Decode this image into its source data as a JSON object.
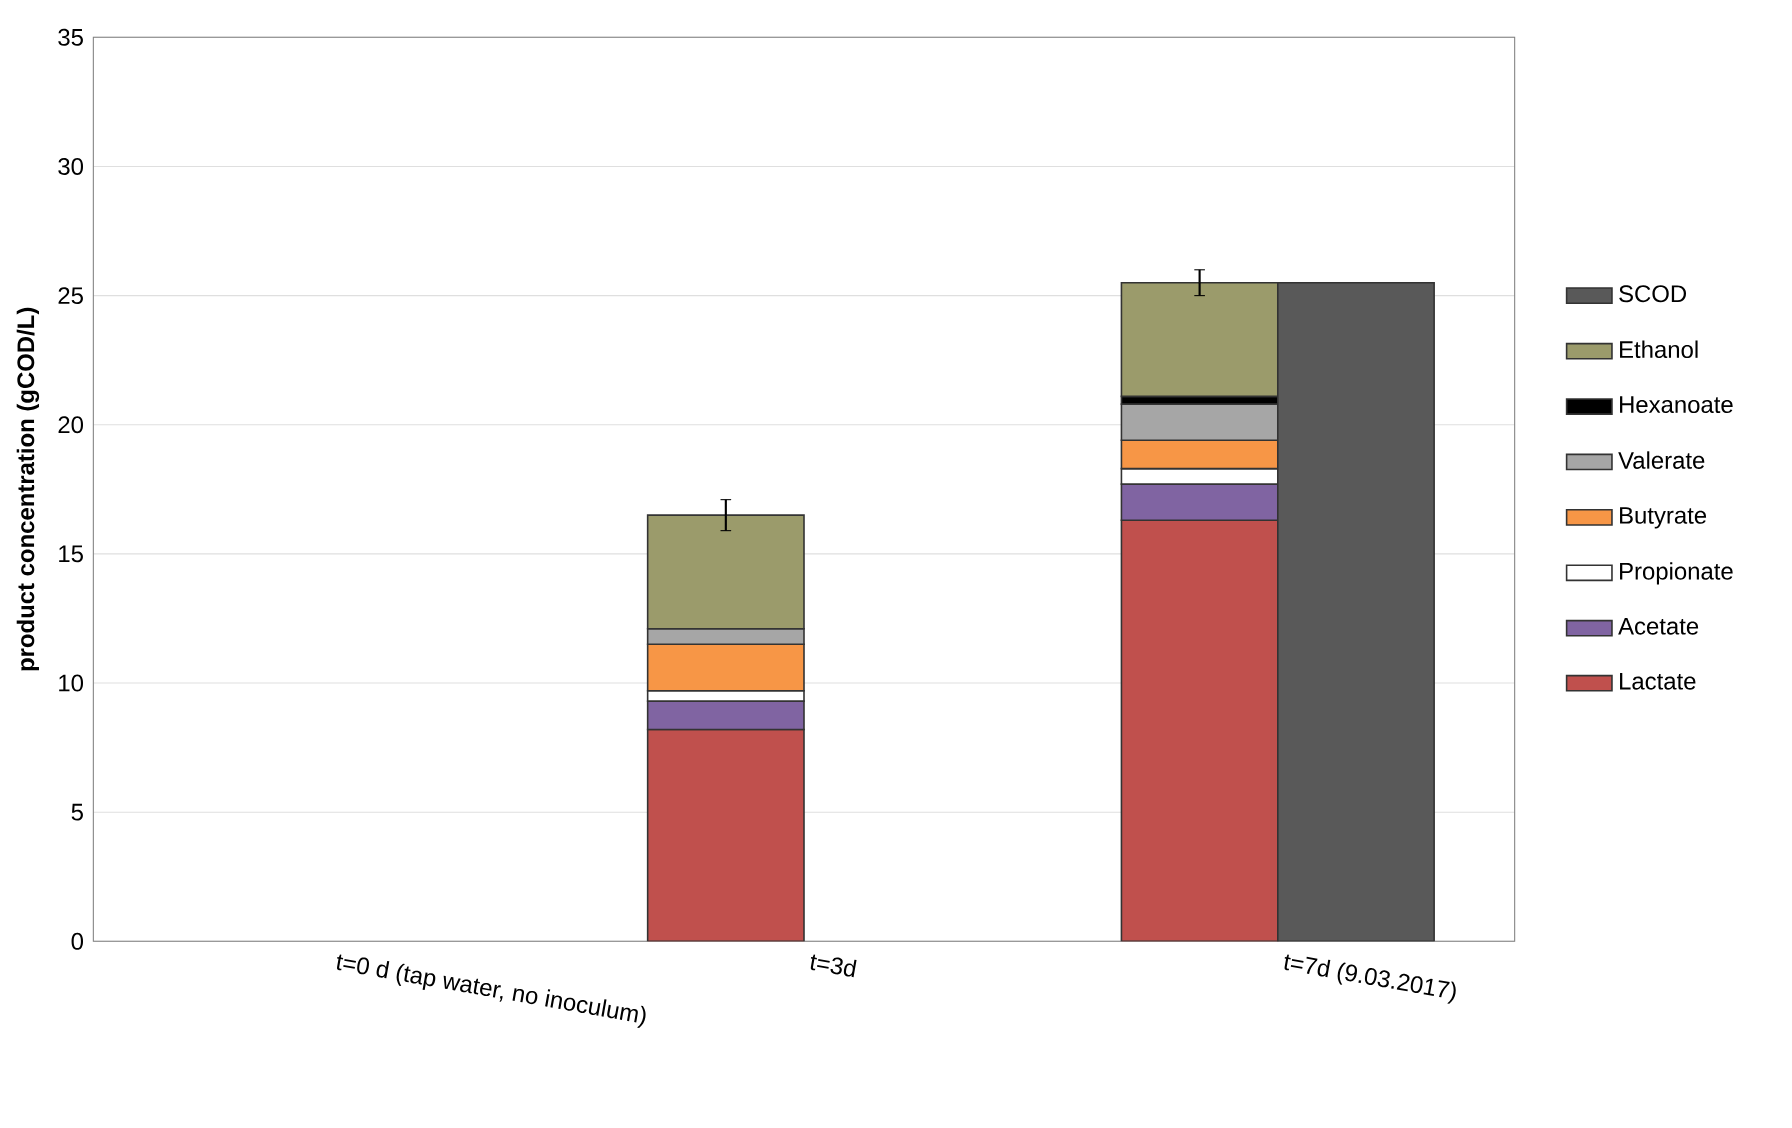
{
  "chart_data": {
    "type": "bar",
    "ylabel": "product concentration (gCOD/L)",
    "categories": [
      "t=0 d (tap water, no inoculum)",
      "t=3d",
      "t=7d (9.03.2017)"
    ],
    "ylim": [
      0,
      35
    ],
    "yticks": [
      0,
      5,
      10,
      15,
      20,
      25,
      30,
      35
    ],
    "grid": "y",
    "legend": "right",
    "series": [
      {
        "name": "Lactate",
        "color": "#c0504d",
        "values": [
          null,
          8.2,
          16.3
        ],
        "base": [
          null,
          0,
          0
        ]
      },
      {
        "name": "Acetate",
        "color": "#8064a2",
        "values": [
          null,
          1.1,
          1.4
        ],
        "base": [
          null,
          8.2,
          16.3
        ]
      },
      {
        "name": "Propionate",
        "color": "#ffffff",
        "values": [
          null,
          0.4,
          0.6
        ],
        "base": [
          null,
          9.3,
          17.7
        ]
      },
      {
        "name": "Butyrate",
        "color": "#f79646",
        "values": [
          null,
          1.8,
          1.1
        ],
        "base": [
          null,
          9.7,
          18.3
        ]
      },
      {
        "name": "Valerate",
        "color": "#a6a6a6",
        "values": [
          null,
          0.6,
          1.4
        ],
        "base": [
          null,
          11.5,
          19.4
        ]
      },
      {
        "name": "Hexanoate",
        "color": "#000000",
        "values": [
          null,
          null,
          0.3
        ],
        "base": [
          null,
          null,
          20.8
        ]
      },
      {
        "name": "Ethanol",
        "color": "#9b9b6b",
        "values": [
          null,
          4.4,
          4.4
        ],
        "base": [
          null,
          12.1,
          21.1
        ],
        "errors": [
          null,
          0.6,
          0.5
        ]
      },
      {
        "name": "SCOD",
        "color": "#595959",
        "values": [
          null,
          null,
          25.5
        ]
      }
    ]
  }
}
